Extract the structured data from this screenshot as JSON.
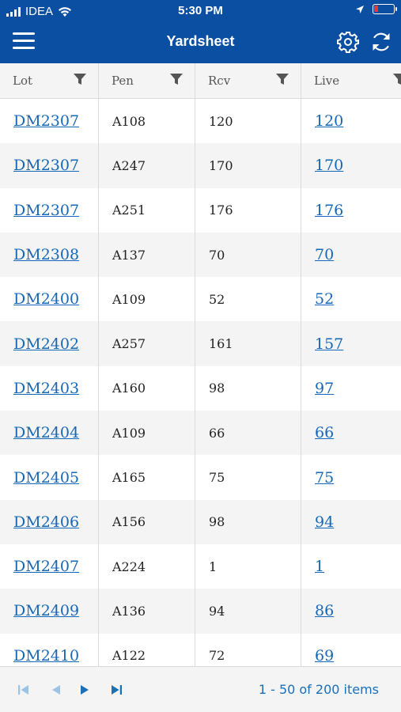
{
  "status_bar": {
    "carrier": "IDEA",
    "time": "5:30 PM"
  },
  "navbar": {
    "title": "Yardsheet"
  },
  "grid": {
    "columns": [
      "Lot",
      "Pen",
      "Rcv",
      "Live"
    ],
    "rows": [
      {
        "lot": "DM2307",
        "pen": "A108",
        "rcv": "120",
        "live": "120"
      },
      {
        "lot": "DM2307",
        "pen": "A247",
        "rcv": "170",
        "live": "170"
      },
      {
        "lot": "DM2307",
        "pen": "A251",
        "rcv": "176",
        "live": "176"
      },
      {
        "lot": "DM2308",
        "pen": "A137",
        "rcv": "70",
        "live": "70"
      },
      {
        "lot": "DM2400",
        "pen": "A109",
        "rcv": "52",
        "live": "52"
      },
      {
        "lot": "DM2402",
        "pen": "A257",
        "rcv": "161",
        "live": "157"
      },
      {
        "lot": "DM2403",
        "pen": "A160",
        "rcv": "98",
        "live": "97"
      },
      {
        "lot": "DM2404",
        "pen": "A109",
        "rcv": "66",
        "live": "66"
      },
      {
        "lot": "DM2405",
        "pen": "A165",
        "rcv": "75",
        "live": "75"
      },
      {
        "lot": "DM2406",
        "pen": "A156",
        "rcv": "98",
        "live": "94"
      },
      {
        "lot": "DM2407",
        "pen": "A224",
        "rcv": "1",
        "live": "1"
      },
      {
        "lot": "DM2409",
        "pen": "A136",
        "rcv": "94",
        "live": "86"
      },
      {
        "lot": "DM2410",
        "pen": "A122",
        "rcv": "72",
        "live": "69"
      }
    ]
  },
  "pager": {
    "info": "1 - 50 of 200 items"
  },
  "colors": {
    "brand": "#0b4fa3",
    "link": "#1667b7",
    "pager_icon": "#1a6fb7",
    "battery": "#e53935"
  }
}
